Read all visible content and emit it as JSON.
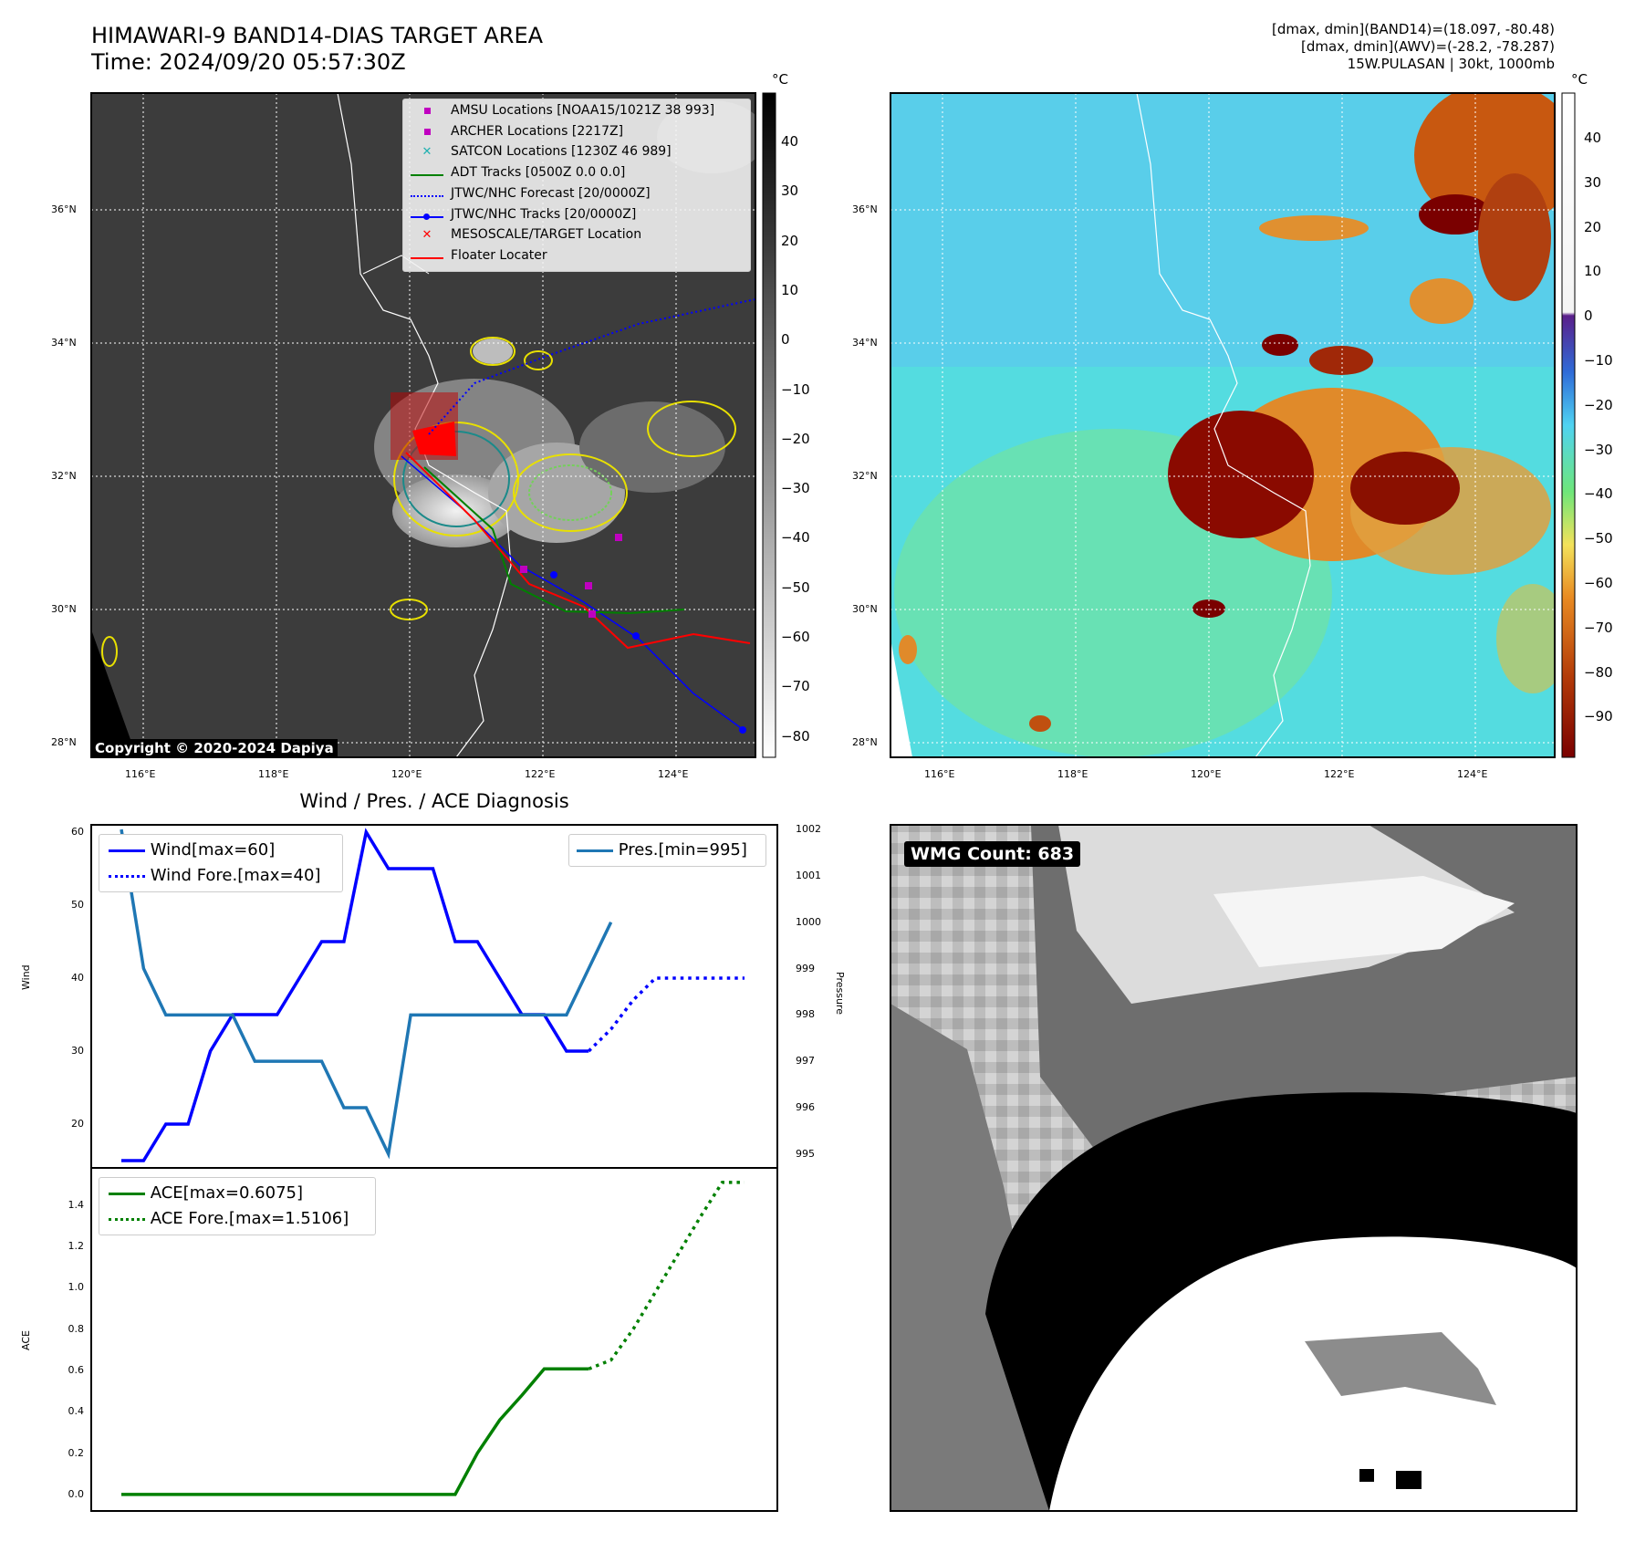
{
  "header": {
    "title_line1": "HIMAWARI-9 BAND14-DIAS TARGET AREA",
    "title_line2": "Time: 2024/09/20 05:57:30Z",
    "info_line1": "[dmax, dmin](BAND14)=(18.097, -80.48)",
    "info_line2": "[dmax, dmin](AWV)=(-28.2, -78.287)",
    "info_line3": "15W.PULASAN | 30kt, 1000mb"
  },
  "map": {
    "lon_ticks": [
      "116°E",
      "118°E",
      "120°E",
      "122°E",
      "124°E"
    ],
    "lat_ticks": [
      "36°N",
      "34°N",
      "32°N",
      "30°N",
      "28°N"
    ],
    "copyright": "Copyright © 2020-2024 Dapiya",
    "legend": [
      {
        "label": "AMSU Locations [NOAA15/1021Z 38 993]",
        "color": "#c000c0",
        "marker": "square"
      },
      {
        "label": "ARCHER Locations [2217Z]",
        "color": "#c000c0",
        "marker": "square"
      },
      {
        "label": "SATCON Locations [1230Z 46 989]",
        "color": "#20b0b0",
        "marker": "x"
      },
      {
        "label": "ADT Tracks [0500Z 0.0 0.0]",
        "color": "#008000",
        "marker": "line"
      },
      {
        "label": "JTWC/NHC Forecast [20/0000Z]",
        "color": "#0000ff",
        "marker": "dotted"
      },
      {
        "label": "JTWC/NHC Tracks [20/0000Z]",
        "color": "#0000ff",
        "marker": "line-dot"
      },
      {
        "label": "MESOSCALE/TARGET Location",
        "color": "#ff0000",
        "marker": "x"
      },
      {
        "label": "Floater Locater",
        "color": "#ff0000",
        "marker": "line"
      }
    ]
  },
  "colorbar_left": {
    "unit": "°C",
    "ticks": [
      "40",
      "30",
      "20",
      "10",
      "0",
      "−10",
      "−20",
      "−30",
      "−40",
      "−50",
      "−60",
      "−70",
      "−80"
    ]
  },
  "colorbar_right": {
    "unit": "°C",
    "ticks": [
      "40",
      "30",
      "20",
      "10",
      "0",
      "−10",
      "−20",
      "−30",
      "−40",
      "−50",
      "−60",
      "−70",
      "−80",
      "−90"
    ]
  },
  "wmg": {
    "label": "WMG Count: 683"
  },
  "chart_data": [
    {
      "type": "line",
      "title": "Wind / Pres. / ACE Diagnosis",
      "ylabel": "Wind",
      "ylabel_right": "Pressure",
      "ylim": [
        14,
        61
      ],
      "ylim_right": [
        994.7,
        1002.1
      ],
      "yticks": [
        "20",
        "30",
        "40",
        "50",
        "60"
      ],
      "yticks_right": [
        "995",
        "996",
        "997",
        "998",
        "999",
        "1000",
        "1001",
        "1002"
      ],
      "x": [
        0,
        1,
        2,
        3,
        4,
        5,
        6,
        7,
        8,
        9,
        10,
        11,
        12,
        13,
        14,
        15,
        16,
        17,
        18,
        19,
        20,
        21
      ],
      "series": [
        {
          "name": "Wind[max=60]",
          "color": "#0000ff",
          "style": "solid",
          "axis": "left",
          "values": [
            15,
            15,
            20,
            20,
            30,
            35,
            35,
            35,
            40,
            45,
            45,
            60,
            55,
            55,
            55,
            45,
            45,
            40,
            35,
            35,
            30,
            30
          ]
        },
        {
          "name": "Wind Fore.[max=40]",
          "color": "#0000ff",
          "style": "dotted",
          "axis": "left",
          "x": [
            21,
            22,
            23,
            24,
            25,
            26,
            27,
            28
          ],
          "values": [
            30,
            33,
            37,
            40,
            40,
            40,
            40,
            40
          ]
        },
        {
          "name": "Pres.[min=995]",
          "color": "#1f77b4",
          "style": "solid",
          "axis": "right",
          "x": [
            0,
            1,
            2,
            3,
            4,
            5,
            6,
            7,
            8,
            9,
            10,
            11,
            12,
            13,
            14,
            15,
            16,
            17,
            18,
            19,
            20,
            21,
            22
          ],
          "values": [
            1002,
            999,
            998,
            998,
            998,
            998,
            997,
            997,
            997,
            997,
            996,
            996,
            995,
            998,
            998,
            998,
            998,
            998,
            998,
            998,
            998,
            999,
            1000
          ]
        }
      ]
    },
    {
      "type": "line",
      "ylabel": "ACE",
      "ylim": [
        -0.08,
        1.58
      ],
      "yticks": [
        "0.0",
        "0.2",
        "0.4",
        "0.6",
        "0.8",
        "1.0",
        "1.2",
        "1.4"
      ],
      "series": [
        {
          "name": "ACE[max=0.6075]",
          "color": "#008000",
          "style": "solid",
          "x": [
            0,
            1,
            2,
            3,
            4,
            5,
            6,
            7,
            8,
            9,
            10,
            11,
            12,
            13,
            14,
            15,
            16,
            17,
            18,
            19,
            20,
            21
          ],
          "values": [
            0,
            0,
            0,
            0,
            0,
            0,
            0,
            0,
            0,
            0,
            0,
            0,
            0,
            0,
            0,
            0,
            0.2,
            0.36,
            0.48,
            0.6075,
            0.6075,
            0.6075
          ]
        },
        {
          "name": "ACE Fore.[max=1.5106]",
          "color": "#008000",
          "style": "dotted",
          "x": [
            21,
            22,
            23,
            24,
            25,
            26,
            27,
            28
          ],
          "values": [
            0.6075,
            0.65,
            0.8,
            0.98,
            1.16,
            1.34,
            1.51,
            1.51
          ]
        }
      ]
    }
  ]
}
